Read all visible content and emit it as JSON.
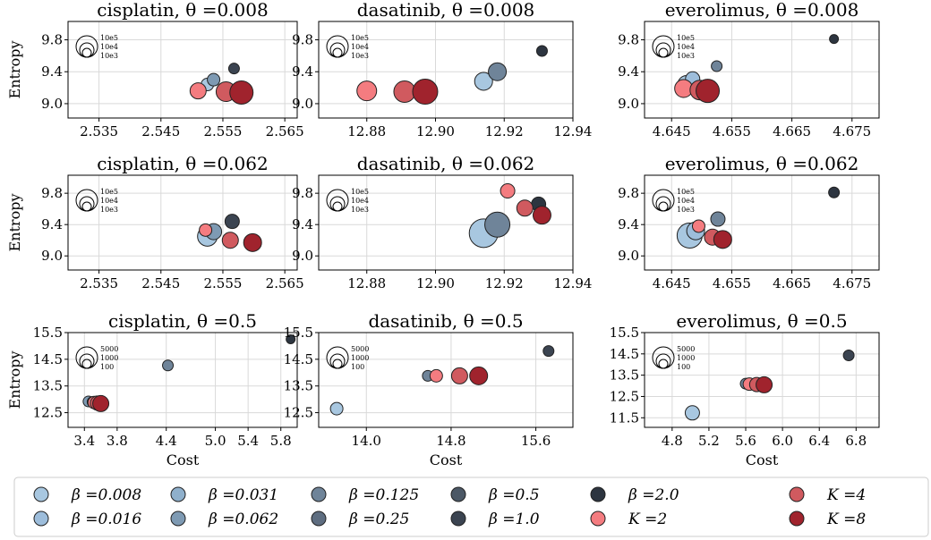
{
  "legend": {
    "entries": [
      {
        "label": "β =0.008",
        "color": "#a8c7e0"
      },
      {
        "label": "β =0.031",
        "color": "#8fb0cc"
      },
      {
        "label": "β =0.125",
        "color": "#6f8499"
      },
      {
        "label": "β =0.5",
        "color": "#4c5866"
      },
      {
        "label": "β =2.0",
        "color": "#2d3540"
      },
      {
        "label": "K =4",
        "color": "#d05a5f"
      },
      {
        "label": "β =0.016",
        "color": "#9dbddb"
      },
      {
        "label": "β =0.062",
        "color": "#7e9ab3"
      },
      {
        "label": "β =0.25",
        "color": "#5e6d80"
      },
      {
        "label": "β =1.0",
        "color": "#3b4451"
      },
      {
        "label": "K =2",
        "color": "#f47c80"
      },
      {
        "label": "K =8",
        "color": "#a0232d"
      }
    ]
  },
  "chart_data": [
    {
      "type": "scatter",
      "title": "cisplatin, θ =0.008",
      "ylabel": "Entropy",
      "xlabel": "",
      "xlim": [
        2.53,
        2.567
      ],
      "ylim": [
        8.82,
        10.03
      ],
      "xticks": [
        2.535,
        2.545,
        2.555,
        2.565
      ],
      "xtick_labels": [
        "2.535",
        "2.545",
        "2.555",
        "2.565"
      ],
      "yticks": [
        9.0,
        9.4,
        9.8
      ],
      "ytick_labels": [
        "9.0",
        "9.4",
        "9.8"
      ],
      "size_legend": [
        "10e5",
        "10e4",
        "10e3"
      ],
      "points": [
        {
          "x": 2.5525,
          "y": 9.24,
          "color": "#a8c7e0",
          "s": 7
        },
        {
          "x": 2.5535,
          "y": 9.3,
          "color": "#7e9ab3",
          "s": 7
        },
        {
          "x": 2.5568,
          "y": 9.44,
          "color": "#3b4451",
          "s": 6
        },
        {
          "x": 2.551,
          "y": 9.16,
          "color": "#f47c80",
          "s": 9
        },
        {
          "x": 2.5555,
          "y": 9.15,
          "color": "#d05a5f",
          "s": 11
        },
        {
          "x": 2.558,
          "y": 9.14,
          "color": "#a0232d",
          "s": 13
        }
      ]
    },
    {
      "type": "scatter",
      "title": "dasatinib, θ =0.008",
      "ylabel": "",
      "xlabel": "",
      "xlim": [
        12.866,
        12.94
      ],
      "ylim": [
        8.82,
        10.03
      ],
      "xticks": [
        12.88,
        12.9,
        12.92,
        12.94
      ],
      "xtick_labels": [
        "12.88",
        "12.90",
        "12.92",
        "12.94"
      ],
      "yticks": [
        9.0,
        9.4,
        9.8
      ],
      "ytick_labels": [
        "9.0",
        "9.4",
        "9.8"
      ],
      "size_legend": [
        "10e5",
        "10e4",
        "10e3"
      ],
      "points": [
        {
          "x": 12.914,
          "y": 9.28,
          "color": "#a8c7e0",
          "s": 10
        },
        {
          "x": 12.918,
          "y": 9.4,
          "color": "#6f8499",
          "s": 10
        },
        {
          "x": 12.931,
          "y": 9.66,
          "color": "#2d3540",
          "s": 6
        },
        {
          "x": 12.88,
          "y": 9.16,
          "color": "#f47c80",
          "s": 11
        },
        {
          "x": 12.891,
          "y": 9.15,
          "color": "#d05a5f",
          "s": 12
        },
        {
          "x": 12.897,
          "y": 9.15,
          "color": "#a0232d",
          "s": 14
        }
      ]
    },
    {
      "type": "scatter",
      "title": "everolimus, θ =0.008",
      "ylabel": "",
      "xlabel": "",
      "xlim": [
        4.6405,
        4.6795
      ],
      "ylim": [
        8.82,
        10.03
      ],
      "xticks": [
        4.645,
        4.655,
        4.665,
        4.675
      ],
      "xtick_labels": [
        "4.645",
        "4.655",
        "4.665",
        "4.675"
      ],
      "yticks": [
        9.0,
        9.4,
        9.8
      ],
      "ytick_labels": [
        "9.0",
        "9.4",
        "9.8"
      ],
      "size_legend": [
        "10e5",
        "10e4",
        "10e3"
      ],
      "points": [
        {
          "x": 4.6475,
          "y": 9.24,
          "color": "#a8c7e0",
          "s": 10
        },
        {
          "x": 4.6485,
          "y": 9.31,
          "color": "#9dbddb",
          "s": 8
        },
        {
          "x": 4.6525,
          "y": 9.47,
          "color": "#6f8499",
          "s": 6
        },
        {
          "x": 4.672,
          "y": 9.81,
          "color": "#2d3540",
          "s": 5
        },
        {
          "x": 4.647,
          "y": 9.19,
          "color": "#f47c80",
          "s": 10
        },
        {
          "x": 4.6497,
          "y": 9.17,
          "color": "#d05a5f",
          "s": 11
        },
        {
          "x": 4.651,
          "y": 9.16,
          "color": "#a0232d",
          "s": 13
        }
      ]
    },
    {
      "type": "scatter",
      "title": "cisplatin, θ =0.062",
      "ylabel": "Entropy",
      "xlabel": "",
      "xlim": [
        2.53,
        2.567
      ],
      "ylim": [
        8.82,
        10.03
      ],
      "xticks": [
        2.535,
        2.545,
        2.555,
        2.565
      ],
      "xtick_labels": [
        "2.535",
        "2.545",
        "2.555",
        "2.565"
      ],
      "yticks": [
        9.0,
        9.4,
        9.8
      ],
      "ytick_labels": [
        "9.0",
        "9.4",
        "9.8"
      ],
      "size_legend": [
        "10e5",
        "10e4",
        "10e3"
      ],
      "points": [
        {
          "x": 2.5525,
          "y": 9.25,
          "color": "#a8c7e0",
          "s": 11
        },
        {
          "x": 2.5535,
          "y": 9.31,
          "color": "#7e9ab3",
          "s": 9
        },
        {
          "x": 2.5565,
          "y": 9.44,
          "color": "#3b4451",
          "s": 8
        },
        {
          "x": 2.5522,
          "y": 9.33,
          "color": "#f47c80",
          "s": 7
        },
        {
          "x": 2.5562,
          "y": 9.2,
          "color": "#d05a5f",
          "s": 9
        },
        {
          "x": 2.5598,
          "y": 9.17,
          "color": "#a0232d",
          "s": 10
        }
      ]
    },
    {
      "type": "scatter",
      "title": "dasatinib, θ =0.062",
      "ylabel": "",
      "xlabel": "",
      "xlim": [
        12.866,
        12.94
      ],
      "ylim": [
        8.82,
        10.03
      ],
      "xticks": [
        12.88,
        12.9,
        12.92,
        12.94
      ],
      "xtick_labels": [
        "12.88",
        "12.90",
        "12.92",
        "12.94"
      ],
      "yticks": [
        9.0,
        9.4,
        9.8
      ],
      "ytick_labels": [
        "9.0",
        "9.4",
        "9.8"
      ],
      "size_legend": [
        "10e5",
        "10e4",
        "10e3"
      ],
      "points": [
        {
          "x": 12.914,
          "y": 9.29,
          "color": "#a8c7e0",
          "s": 16
        },
        {
          "x": 12.918,
          "y": 9.4,
          "color": "#6f8499",
          "s": 14
        },
        {
          "x": 12.93,
          "y": 9.66,
          "color": "#2d3540",
          "s": 8
        },
        {
          "x": 12.921,
          "y": 9.83,
          "color": "#f47c80",
          "s": 8
        },
        {
          "x": 12.926,
          "y": 9.61,
          "color": "#d05a5f",
          "s": 9
        },
        {
          "x": 12.931,
          "y": 9.52,
          "color": "#a0232d",
          "s": 10
        }
      ]
    },
    {
      "type": "scatter",
      "title": "everolimus, θ =0.062",
      "ylabel": "",
      "xlabel": "",
      "xlim": [
        4.6405,
        4.6795
      ],
      "ylim": [
        8.82,
        10.03
      ],
      "xticks": [
        4.645,
        4.655,
        4.665,
        4.675
      ],
      "xtick_labels": [
        "4.645",
        "4.655",
        "4.665",
        "4.675"
      ],
      "yticks": [
        9.0,
        9.4,
        9.8
      ],
      "ytick_labels": [
        "9.0",
        "9.4",
        "9.8"
      ],
      "size_legend": [
        "10e5",
        "10e4",
        "10e3"
      ],
      "points": [
        {
          "x": 4.648,
          "y": 9.26,
          "color": "#a8c7e0",
          "s": 14
        },
        {
          "x": 4.649,
          "y": 9.32,
          "color": "#9dbddb",
          "s": 10
        },
        {
          "x": 4.6527,
          "y": 9.47,
          "color": "#6f8499",
          "s": 8
        },
        {
          "x": 4.672,
          "y": 9.81,
          "color": "#2d3540",
          "s": 6
        },
        {
          "x": 4.6495,
          "y": 9.38,
          "color": "#f47c80",
          "s": 7
        },
        {
          "x": 4.6518,
          "y": 9.24,
          "color": "#d05a5f",
          "s": 9
        },
        {
          "x": 4.6535,
          "y": 9.21,
          "color": "#a0232d",
          "s": 10
        }
      ]
    },
    {
      "type": "scatter",
      "title": "cisplatin, θ =0.5",
      "ylabel": "Entropy",
      "xlabel": "Cost",
      "xlim": [
        3.2,
        6.0
      ],
      "ylim": [
        11.95,
        15.5
      ],
      "xticks": [
        3.4,
        3.8,
        4.4,
        5.0,
        5.4,
        5.8
      ],
      "xtick_labels": [
        "3.4",
        "3.8",
        "4.4",
        "5.0",
        "5.4",
        "5.8"
      ],
      "yticks": [
        12.5,
        13.5,
        14.5,
        15.5
      ],
      "ytick_labels": [
        "12.5",
        "13.5",
        "14.5",
        "15.5"
      ],
      "size_legend": [
        "5000",
        "1000",
        "100"
      ],
      "points": [
        {
          "x": 3.45,
          "y": 12.92,
          "color": "#7e9ab3",
          "s": 6
        },
        {
          "x": 3.5,
          "y": 12.9,
          "color": "#4c5866",
          "s": 6
        },
        {
          "x": 4.42,
          "y": 14.27,
          "color": "#6f8499",
          "s": 6
        },
        {
          "x": 5.92,
          "y": 15.25,
          "color": "#2d3540",
          "s": 5
        },
        {
          "x": 3.52,
          "y": 12.88,
          "color": "#f47c80",
          "s": 7
        },
        {
          "x": 3.56,
          "y": 12.86,
          "color": "#d05a5f",
          "s": 8
        },
        {
          "x": 3.6,
          "y": 12.84,
          "color": "#a0232d",
          "s": 9
        }
      ]
    },
    {
      "type": "scatter",
      "title": "dasatinib, θ =0.5",
      "ylabel": "",
      "xlabel": "Cost",
      "xlim": [
        13.55,
        15.95
      ],
      "ylim": [
        11.95,
        15.5
      ],
      "xticks": [
        14.0,
        14.8,
        15.6
      ],
      "xtick_labels": [
        "14.0",
        "14.8",
        "15.6"
      ],
      "yticks": [
        12.5,
        13.5,
        14.5,
        15.5
      ],
      "ytick_labels": [
        "12.5",
        "13.5",
        "14.5",
        "15.5"
      ],
      "size_legend": [
        "5000",
        "1000",
        "100"
      ],
      "points": [
        {
          "x": 13.72,
          "y": 12.65,
          "color": "#a8c7e0",
          "s": 7
        },
        {
          "x": 14.58,
          "y": 13.88,
          "color": "#6f8499",
          "s": 6
        },
        {
          "x": 15.72,
          "y": 14.81,
          "color": "#3b4451",
          "s": 6
        },
        {
          "x": 14.66,
          "y": 13.88,
          "color": "#f47c80",
          "s": 7
        },
        {
          "x": 14.88,
          "y": 13.88,
          "color": "#d05a5f",
          "s": 9
        },
        {
          "x": 15.06,
          "y": 13.88,
          "color": "#a0232d",
          "s": 10
        }
      ]
    },
    {
      "type": "scatter",
      "title": "everolimus, θ =0.5",
      "ylabel": "",
      "xlabel": "Cost",
      "xlim": [
        4.5,
        7.05
      ],
      "ylim": [
        11.05,
        15.5
      ],
      "xticks": [
        4.8,
        5.2,
        5.6,
        6.0,
        6.4,
        6.8
      ],
      "xtick_labels": [
        "4.8",
        "5.2",
        "5.6",
        "6.0",
        "6.4",
        "6.8"
      ],
      "yticks": [
        11.5,
        12.5,
        13.5,
        14.5,
        15.5
      ],
      "ytick_labels": [
        "11.5",
        "12.5",
        "13.5",
        "14.5",
        "15.5"
      ],
      "size_legend": [
        "5000",
        "1000",
        "100"
      ],
      "points": [
        {
          "x": 5.02,
          "y": 11.73,
          "color": "#a8c7e0",
          "s": 8
        },
        {
          "x": 5.6,
          "y": 13.1,
          "color": "#6f8499",
          "s": 6
        },
        {
          "x": 6.72,
          "y": 14.43,
          "color": "#3b4451",
          "s": 6
        },
        {
          "x": 5.64,
          "y": 13.08,
          "color": "#f47c80",
          "s": 7
        },
        {
          "x": 5.72,
          "y": 13.06,
          "color": "#d05a5f",
          "s": 8
        },
        {
          "x": 5.8,
          "y": 13.05,
          "color": "#a0232d",
          "s": 9
        }
      ]
    }
  ]
}
